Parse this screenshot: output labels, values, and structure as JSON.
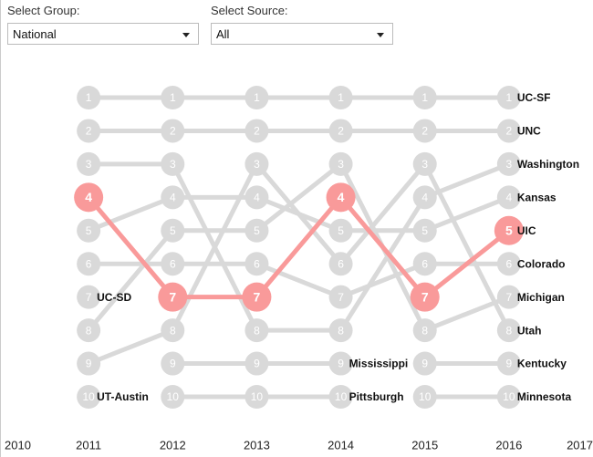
{
  "controls": [
    {
      "label": "Select Group:",
      "selected": "National"
    },
    {
      "label": "Select Source:",
      "selected": "All"
    }
  ],
  "chart_data": {
    "type": "bump",
    "x": [
      2011,
      2012,
      2013,
      2014,
      2015,
      2016
    ],
    "xlim": [
      2010,
      2017
    ],
    "xticks": [
      2010,
      2011,
      2012,
      2013,
      2014,
      2015,
      2016,
      2017
    ],
    "ylim": [
      1,
      10
    ],
    "series": [
      {
        "name": "UC-SF",
        "color": "#d9d9d9",
        "values": [
          1,
          1,
          1,
          1,
          1,
          1
        ]
      },
      {
        "name": "UNC",
        "color": "#d9d9d9",
        "values": [
          2,
          2,
          2,
          2,
          2,
          2
        ]
      },
      {
        "name": "Washington",
        "color": "#d9d9d9",
        "values": [
          3,
          3,
          8,
          8,
          4,
          3
        ]
      },
      {
        "name": "Kansas",
        "color": "#d9d9d9",
        "values": [
          5,
          4,
          4,
          5,
          5,
          4
        ]
      },
      {
        "name": "Colorado",
        "color": "#d9d9d9",
        "values": [
          6,
          6,
          6,
          7,
          6,
          6
        ]
      },
      {
        "name": "Michigan",
        "color": "#d9d9d9",
        "values": [
          8,
          5,
          5,
          3,
          8,
          7
        ]
      },
      {
        "name": "Utah",
        "color": "#d9d9d9",
        "values": [
          9,
          8,
          3,
          6,
          3,
          8
        ]
      },
      {
        "name": "Kentucky",
        "color": "#d9d9d9",
        "values": [
          null,
          null,
          null,
          null,
          9,
          9
        ]
      },
      {
        "name": "Minnesota",
        "color": "#d9d9d9",
        "values": [
          null,
          null,
          null,
          null,
          10,
          10
        ]
      },
      {
        "name": "UC-SD",
        "color": "#d9d9d9",
        "values": [
          7,
          null,
          null,
          null,
          null,
          null
        ]
      },
      {
        "name": "UT-Austin",
        "color": "#d9d9d9",
        "values": [
          10,
          null,
          null,
          null,
          null,
          null
        ]
      },
      {
        "name": "Mississippi",
        "color": "#d9d9d9",
        "values": [
          null,
          9,
          9,
          9,
          null,
          null
        ]
      },
      {
        "name": "Pittsburgh",
        "color": "#d9d9d9",
        "values": [
          null,
          10,
          10,
          10,
          null,
          null
        ]
      },
      {
        "name": "UIC",
        "color": "#f99a9a",
        "values": [
          4,
          7,
          7,
          4,
          7,
          5
        ]
      }
    ]
  }
}
